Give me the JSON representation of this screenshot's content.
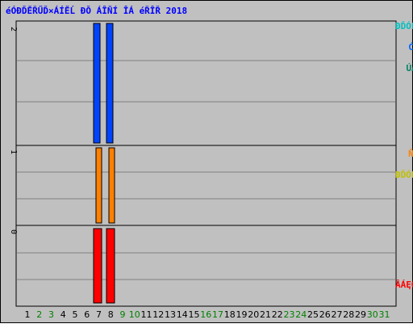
{
  "title": "éÓÐĎĚŘŰĎ×ÁÍĚĹ ĐŎ ÁÎŇÍ ÎÁ éŘÎŘ 2018",
  "right_labels": {
    "top": {
      "parts": [
        "ÚÄÁĎÓĎ×",
        "/",
        "ĆÁĘĚĎ×",
        "/",
        "ĐĎÓĹÔÉÔĹĚĹĘ"
      ],
      "colors": [
        "#008060",
        "#000000",
        "#0066ff",
        "#000000",
        "#00c0c0"
      ]
    },
    "middle": {
      "parts": [
        "ĐĎÓĹÔÉÔĹĚĹĘ",
        "/",
        "ŇÁĘÔĎ×"
      ],
      "colors": [
        "#c0c000",
        "#000000",
        "#ff8000"
      ]
    },
    "bottom": {
      "parts": [
        "ÂÁĘÔ"
      ],
      "colors": [
        "#ff0000"
      ]
    }
  },
  "colors": {
    "blue": "#0044ff",
    "orange": "#ff8000",
    "red": "#ff0000",
    "weekend": "#008000",
    "weekday": "#000000"
  },
  "chart_data": {
    "type": "bar",
    "panels": [
      {
        "name": "top",
        "ymax_label": "2",
        "series": [
          {
            "color": "#0044ff",
            "values": {
              "6": 2,
              "7": 2
            }
          }
        ]
      },
      {
        "name": "middle",
        "ymax_label": "1",
        "series": [
          {
            "color": "#ff8000",
            "values": {
              "6": 1,
              "7": 1
            }
          }
        ]
      },
      {
        "name": "bottom",
        "ymax_label": "0",
        "series": [
          {
            "color": "#ff0000",
            "values": {
              "6": 1,
              "7": 1
            }
          }
        ]
      }
    ],
    "x_categories": [
      "1",
      "2",
      "3",
      "4",
      "5",
      "6",
      "7",
      "8",
      "9",
      "10",
      "11",
      "12",
      "13",
      "14",
      "15",
      "16",
      "17",
      "18",
      "19",
      "20",
      "21",
      "22",
      "23",
      "24",
      "25",
      "26",
      "27",
      "28",
      "29",
      "30",
      "31"
    ],
    "weekend_days": [
      "2",
      "3",
      "9",
      "10",
      "16",
      "17",
      "23",
      "24",
      "30",
      "31"
    ]
  }
}
